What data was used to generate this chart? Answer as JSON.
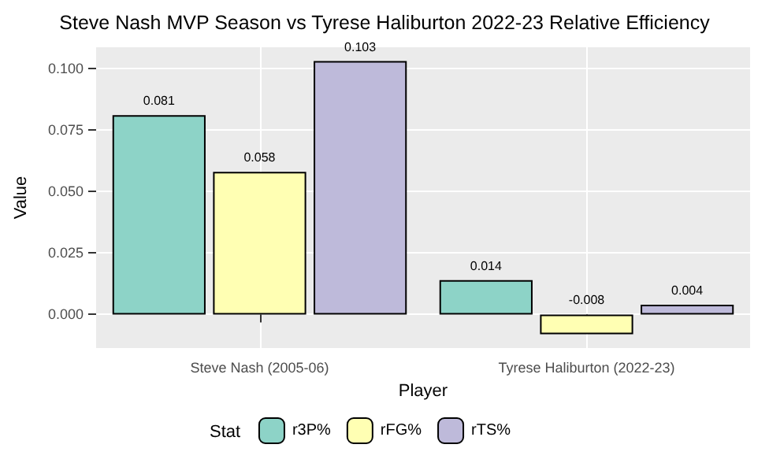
{
  "chart_data": {
    "type": "bar",
    "title": "Steve Nash MVP Season vs Tyrese Haliburton 2022-23 Relative Efficiency",
    "xlabel": "Player",
    "ylabel": "Value",
    "legend_title": "Stat",
    "categories": [
      "Steve Nash (2005-06)",
      "Tyrese Haliburton (2022-23)"
    ],
    "series": [
      {
        "name": "r3P%",
        "color": "#8dd3c7",
        "values": [
          0.081,
          0.014
        ]
      },
      {
        "name": "rFG%",
        "color": "#ffffb3",
        "values": [
          0.058,
          -0.008
        ]
      },
      {
        "name": "rTS%",
        "color": "#bebada",
        "values": [
          0.103,
          0.004
        ]
      }
    ],
    "ylim": [
      -0.0136,
      0.1086
    ],
    "yticks": [
      {
        "value": 0,
        "label": "0.000"
      },
      {
        "value": 0.025,
        "label": "0.025"
      },
      {
        "value": 0.05,
        "label": "0.050"
      },
      {
        "value": 0.075,
        "label": "0.075"
      },
      {
        "value": 0.1,
        "label": "0.100"
      }
    ],
    "grid": true,
    "legend": "bottom",
    "data_labels": true
  }
}
